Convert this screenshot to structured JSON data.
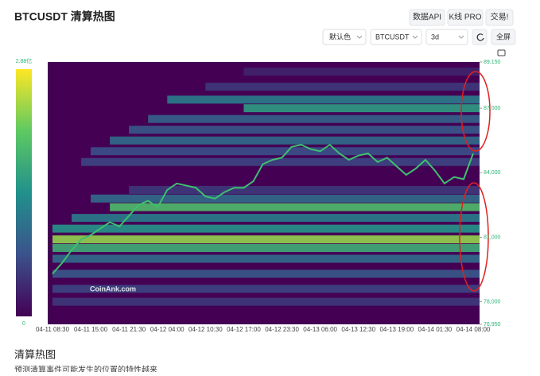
{
  "header": {
    "title": "BTCUSDT 清算热图",
    "buttons": [
      "数据API",
      "K线 PRO",
      "交易!"
    ],
    "selects": [
      "默认色",
      "BTCUSDT",
      "3d"
    ],
    "fullscreen": "全屏"
  },
  "chart_data": {
    "type": "heatmap",
    "watermark": "CoinAnk.com",
    "colorbar": {
      "max_label": "2.88亿",
      "min_label": "0",
      "range": [
        0,
        2.88
      ]
    },
    "categories": [
      "04-11 08:30",
      "04-11 15:00",
      "04-11 21:30",
      "04-12 04:00",
      "04-12 10:30",
      "04-12 17:00",
      "04-12 23:30",
      "04-13 06:00",
      "04-13 12:30",
      "04-13 19:00",
      "04-14 01:30",
      "04-14 08:00"
    ],
    "ylim": [
      76950,
      89150
    ],
    "yticks": [
      {
        "value": 89150,
        "label": "89,150"
      },
      {
        "value": 87000,
        "label": "87,000"
      },
      {
        "value": 84000,
        "label": "84,000"
      },
      {
        "value": 81000,
        "label": "81,000"
      },
      {
        "value": 78000,
        "label": "78,000"
      },
      {
        "value": 76950,
        "label": "76,950"
      }
    ],
    "price": {
      "color": "#3fbf6f",
      "values": [
        79300,
        79800,
        80400,
        80900,
        81100,
        81400,
        81700,
        81500,
        82000,
        82500,
        82700,
        82400,
        83200,
        83500,
        83400,
        83300,
        82900,
        82800,
        83100,
        83300,
        83300,
        83600,
        84400,
        84600,
        84700,
        85200,
        85300,
        85100,
        85000,
        85300,
        84900,
        84600,
        84800,
        84900,
        84500,
        84700,
        84300,
        83900,
        84200,
        84600,
        84100,
        83500,
        83800,
        83700,
        84900
      ]
    },
    "bands": {
      "prices": [
        88700,
        88000,
        87400,
        87000,
        86500,
        86000,
        85500,
        85000,
        84500,
        83200,
        82800,
        82400,
        81900,
        81400,
        80900,
        80500,
        80000,
        79300,
        78600,
        78000
      ],
      "values": [
        0.3,
        0.5,
        1.2,
        1.6,
        0.9,
        0.8,
        1.0,
        0.7,
        0.6,
        0.5,
        1.0,
        2.0,
        1.2,
        1.5,
        2.4,
        1.8,
        1.0,
        0.8,
        0.6,
        0.5
      ],
      "start": [
        20,
        16,
        12,
        20,
        10,
        8,
        6,
        4,
        3,
        8,
        4,
        6,
        2,
        0,
        0,
        0,
        0,
        0,
        0,
        0
      ]
    }
  },
  "footer": {
    "title": "清算热图",
    "text": "预测清算事件可能发生的位置的特性越来"
  }
}
